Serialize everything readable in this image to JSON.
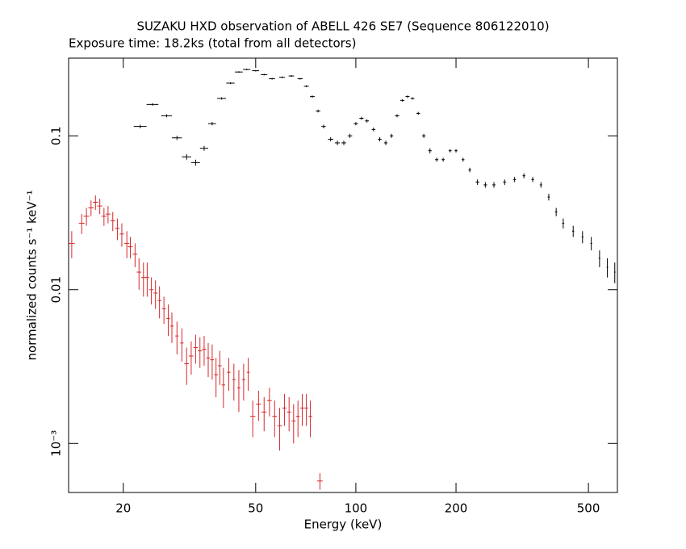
{
  "chart_data": {
    "type": "scatter",
    "title": "SUZAKU HXD observation of ABELL 426 SE7 (Sequence 806122010)",
    "subtitle": "Exposure time: 18.2ks (total from all detectors)",
    "x_label": "Energy (keV)",
    "y_label": "normalized counts s⁻¹ keV⁻¹",
    "xscale": "log",
    "yscale": "log",
    "xlim": [
      13.7,
      611
    ],
    "ylim": [
      0.00048,
      0.32
    ],
    "xticks": [
      20,
      50,
      100,
      200,
      500
    ],
    "yticks": [
      0.1,
      0.01,
      {
        "value": 0.001,
        "label": "10⁻³"
      }
    ],
    "series": [
      {
        "color": "#000000",
        "x": [
          22.5,
          24.5,
          27,
          29,
          31,
          33,
          35,
          37,
          39.5,
          42,
          44.5,
          47,
          50,
          53,
          56,
          60,
          64,
          68,
          71,
          74,
          77,
          80,
          84,
          88,
          92,
          96,
          100,
          104,
          108,
          113,
          118,
          123,
          128,
          133,
          138,
          143,
          148,
          154,
          160,
          167,
          175,
          183,
          192,
          200,
          210,
          220,
          232,
          245,
          260,
          280,
          300,
          320,
          340,
          360,
          380,
          400,
          420,
          450,
          480,
          510,
          540,
          570,
          600
        ],
        "values": [
          0.115,
          0.16,
          0.135,
          0.097,
          0.073,
          0.067,
          0.083,
          0.12,
          0.175,
          0.22,
          0.26,
          0.27,
          0.265,
          0.25,
          0.235,
          0.24,
          0.245,
          0.235,
          0.21,
          0.18,
          0.145,
          0.115,
          0.095,
          0.09,
          0.09,
          0.1,
          0.12,
          0.13,
          0.125,
          0.11,
          0.095,
          0.09,
          0.1,
          0.135,
          0.17,
          0.18,
          0.175,
          0.14,
          0.1,
          0.08,
          0.07,
          0.07,
          0.08,
          0.08,
          0.07,
          0.06,
          0.05,
          0.048,
          0.048,
          0.05,
          0.052,
          0.055,
          0.052,
          0.048,
          0.04,
          0.032,
          0.027,
          0.024,
          0.022,
          0.02,
          0.016,
          0.014,
          0.013
        ],
        "xerr": [
          1,
          1,
          1,
          1,
          1,
          1,
          1,
          1,
          1.2,
          1.2,
          1.2,
          1.2,
          1.2,
          1.2,
          1.2,
          1.2,
          1.2,
          1.2,
          1.2,
          1.2,
          1.2,
          1.2,
          1.5,
          1.5,
          1.5,
          1.5,
          1.5,
          1.5,
          1.5,
          1.5,
          1.5,
          1.5,
          1.5,
          2,
          2,
          2,
          2,
          2,
          2,
          2,
          2,
          2,
          2,
          2,
          2,
          2,
          3,
          3,
          3,
          3,
          3,
          3,
          3,
          3,
          3,
          3,
          3,
          3,
          3,
          3,
          3,
          3,
          3
        ],
        "yerr": [
          0.003,
          0.003,
          0.003,
          0.003,
          0.003,
          0.003,
          0.003,
          0.003,
          0.003,
          0.003,
          0.003,
          0.003,
          0.003,
          0.003,
          0.003,
          0.003,
          0.003,
          0.003,
          0.003,
          0.003,
          0.003,
          0.003,
          0.003,
          0.003,
          0.003,
          0.003,
          0.003,
          0.003,
          0.003,
          0.003,
          0.003,
          0.003,
          0.003,
          0.003,
          0.003,
          0.003,
          0.003,
          0.003,
          0.003,
          0.003,
          0.002,
          0.002,
          0.002,
          0.002,
          0.002,
          0.002,
          0.002,
          0.002,
          0.002,
          0.002,
          0.002,
          0.002,
          0.002,
          0.002,
          0.002,
          0.002,
          0.002,
          0.002,
          0.002,
          0.002,
          0.002,
          0.002,
          0.002
        ]
      },
      {
        "color": "#d62728",
        "x": [
          14,
          15,
          15.5,
          16,
          16.5,
          17,
          17.5,
          18,
          18.6,
          19.2,
          19.8,
          20.5,
          21,
          21.7,
          22.3,
          23,
          23.6,
          24.3,
          25,
          25.7,
          26.5,
          27.3,
          28,
          29,
          30,
          31,
          32,
          33,
          34,
          35,
          36,
          37,
          38,
          39,
          40,
          41.5,
          43,
          44.5,
          46,
          47.5,
          49,
          51,
          53,
          55,
          57,
          59,
          61,
          63,
          65,
          67,
          69,
          71,
          73,
          78
        ],
        "values": [
          0.02,
          0.027,
          0.03,
          0.034,
          0.037,
          0.035,
          0.03,
          0.031,
          0.028,
          0.025,
          0.023,
          0.02,
          0.019,
          0.017,
          0.013,
          0.012,
          0.012,
          0.01,
          0.0095,
          0.0085,
          0.0075,
          0.0065,
          0.0058,
          0.005,
          0.0045,
          0.0033,
          0.0037,
          0.0042,
          0.004,
          0.0041,
          0.0036,
          0.0035,
          0.0028,
          0.0032,
          0.0024,
          0.0029,
          0.0026,
          0.0023,
          0.0026,
          0.0029,
          0.0015,
          0.0018,
          0.0016,
          0.0019,
          0.0015,
          0.0013,
          0.0017,
          0.0016,
          0.0014,
          0.0015,
          0.0017,
          0.0017,
          0.0015,
          0.00057
        ],
        "xerr": [
          0.3,
          0.3,
          0.3,
          0.3,
          0.3,
          0.3,
          0.3,
          0.3,
          0.3,
          0.3,
          0.3,
          0.35,
          0.35,
          0.35,
          0.35,
          0.35,
          0.35,
          0.35,
          0.35,
          0.35,
          0.35,
          0.35,
          0.35,
          0.35,
          0.35,
          0.5,
          0.5,
          0.5,
          0.5,
          0.5,
          0.5,
          0.5,
          0.5,
          0.5,
          0.5,
          0.5,
          0.5,
          0.5,
          0.5,
          0.5,
          0.9,
          0.9,
          0.9,
          0.9,
          0.9,
          0.9,
          0.9,
          0.9,
          0.9,
          0.9,
          0.9,
          0.9,
          0.9,
          1.5
        ],
        "yerr": [
          0.004,
          0.004,
          0.004,
          0.004,
          0.004,
          0.004,
          0.004,
          0.004,
          0.004,
          0.004,
          0.004,
          0.004,
          0.003,
          0.003,
          0.003,
          0.003,
          0.003,
          0.002,
          0.002,
          0.002,
          0.0015,
          0.0015,
          0.0013,
          0.0012,
          0.0011,
          0.0009,
          0.0009,
          0.0009,
          0.0009,
          0.0009,
          0.0009,
          0.0009,
          0.0008,
          0.0008,
          0.0007,
          0.0007,
          0.0007,
          0.0007,
          0.0007,
          0.0007,
          0.0004,
          0.0004,
          0.0004,
          0.0004,
          0.0004,
          0.0004,
          0.0004,
          0.0004,
          0.0004,
          0.0004,
          0.0004,
          0.0004,
          0.0004,
          7e-05
        ]
      }
    ]
  }
}
